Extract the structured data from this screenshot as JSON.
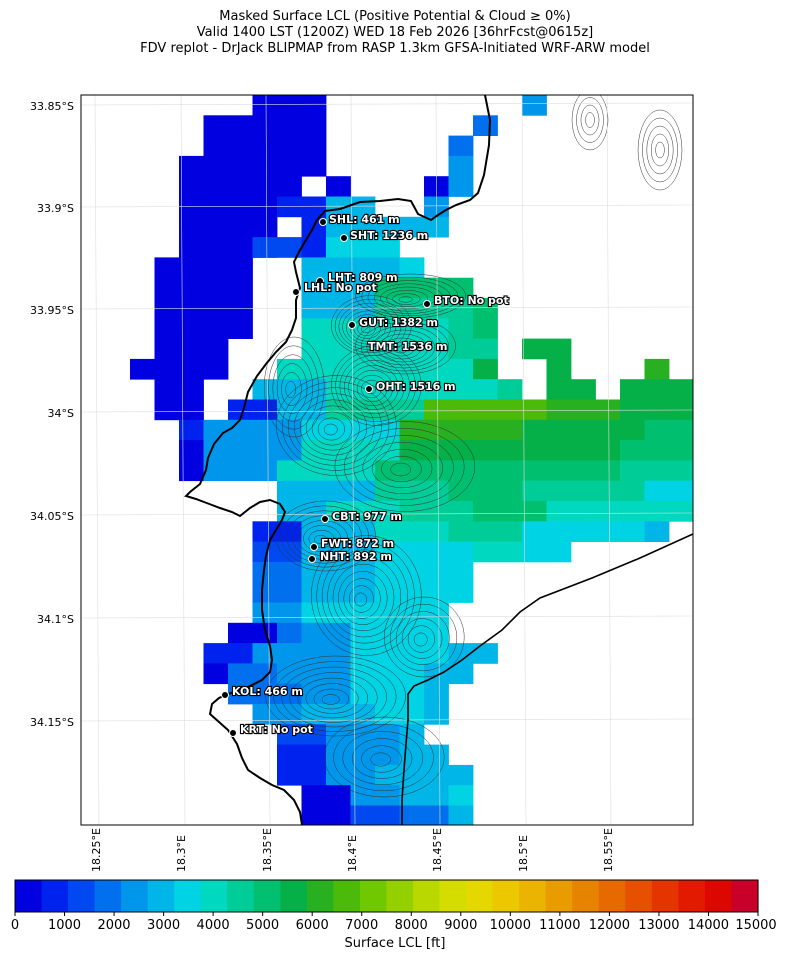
{
  "title": {
    "line1": "Masked Surface LCL (Positive Potential & Cloud ≥ 0%)",
    "line2": "Valid 1400 LST (1200Z) WED 18 Feb 2026 [36hrFcst@0615z]",
    "line3": "FDV replot - DrJack BLIPMAP from RASP 1.3km GFSA-Initiated WRF-ARW model"
  },
  "map": {
    "lat_labels": [
      "33.85°S",
      "33.9°S",
      "33.95°S",
      "34°S",
      "34.05°S",
      "34.1°S",
      "34.15°S"
    ],
    "lon_labels": [
      "18.25°E",
      "18.3°E",
      "18.35°E",
      "18.4°E",
      "18.45°E",
      "18.5°E",
      "18.55°E"
    ]
  },
  "stations": [
    {
      "label": "SHL: 461 m"
    },
    {
      "label": "SHT: 1236 m"
    },
    {
      "label": "LHT: 809 m"
    },
    {
      "label": "LHL: No pot"
    },
    {
      "label": "BTO: No pot"
    },
    {
      "label": "GUT: 1382 m"
    },
    {
      "label": "TMT: 1536 m"
    },
    {
      "label": "OHT: 1516 m"
    },
    {
      "label": "CBT: 977 m"
    },
    {
      "label": "FWT: 872 m"
    },
    {
      "label": "NHT: 892 m"
    },
    {
      "label": "KOL: 466 m"
    },
    {
      "label": "KRT: No pot"
    }
  ],
  "colorbar": {
    "label": "Surface LCL [ft]",
    "ticks": [
      "0",
      "1000",
      "2000",
      "3000",
      "4000",
      "5000",
      "6000",
      "7000",
      "8000",
      "9000",
      "10000",
      "11000",
      "12000",
      "13000",
      "14000",
      "15000"
    ],
    "colors": [
      "#0000e0",
      "#0022ee",
      "#0048f0",
      "#0070ee",
      "#0096ec",
      "#00b6e8",
      "#00d4e4",
      "#00d8c0",
      "#00cc98",
      "#00c070",
      "#06b048",
      "#28b020",
      "#4cba08",
      "#70c800",
      "#94d000",
      "#b8d800",
      "#d4dc00",
      "#e4d800",
      "#ecc800",
      "#eab400",
      "#e89c00",
      "#e68400",
      "#e66a00",
      "#e65000",
      "#e43400",
      "#e21a00",
      "#dc0800",
      "#c8002a"
    ]
  }
}
